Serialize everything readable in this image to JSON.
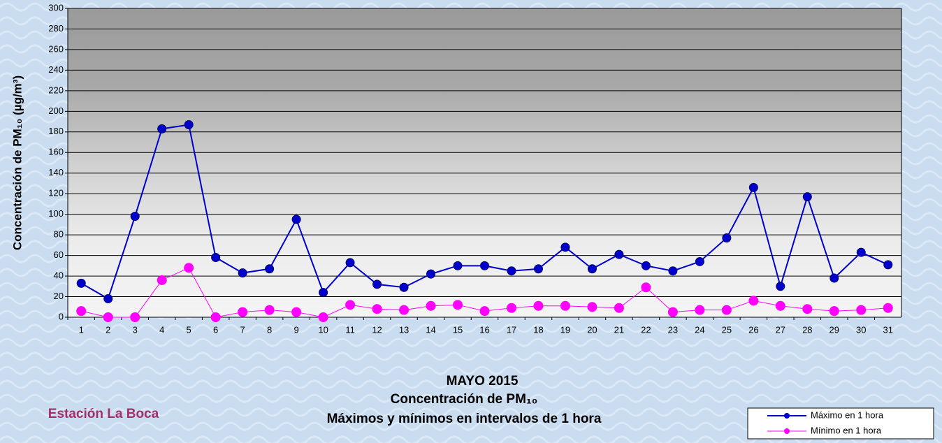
{
  "chart_data": {
    "type": "line",
    "title_lines": [
      "MAYO 2015",
      "Concentración de PM₁₀",
      "Máximos y mínimos en intervalos de 1 hora"
    ],
    "station": "Estación La Boca",
    "ylabel": "Concentración de PM₁₀ (µg/m³)",
    "categories": [
      "1",
      "2",
      "3",
      "4",
      "5",
      "6",
      "7",
      "8",
      "9",
      "10",
      "11",
      "12",
      "13",
      "14",
      "15",
      "16",
      "17",
      "18",
      "19",
      "20",
      "21",
      "22",
      "23",
      "24",
      "25",
      "26",
      "27",
      "28",
      "29",
      "30",
      "31"
    ],
    "series": [
      {
        "name": "Máximo en 1 hora",
        "color": "#0000cc",
        "values": [
          33,
          18,
          98,
          183,
          187,
          58,
          43,
          47,
          95,
          24,
          53,
          32,
          29,
          42,
          50,
          50,
          45,
          47,
          68,
          47,
          61,
          50,
          45,
          54,
          77,
          126,
          30,
          117,
          38,
          63,
          51
        ]
      },
      {
        "name": "Mínimo en 1 hora",
        "color": "#ff00ff",
        "values": [
          6,
          0,
          0,
          36,
          48,
          0,
          5,
          7,
          5,
          0,
          12,
          8,
          7,
          11,
          12,
          6,
          9,
          11,
          11,
          10,
          9,
          29,
          5,
          7,
          7,
          16,
          11,
          8,
          6,
          7,
          9
        ]
      }
    ],
    "ylim": [
      0,
      300
    ],
    "yticks": [
      0,
      20,
      40,
      60,
      80,
      100,
      120,
      140,
      160,
      180,
      200,
      220,
      240,
      260,
      280,
      300
    ],
    "grid": true,
    "legend": "bottom-right"
  }
}
